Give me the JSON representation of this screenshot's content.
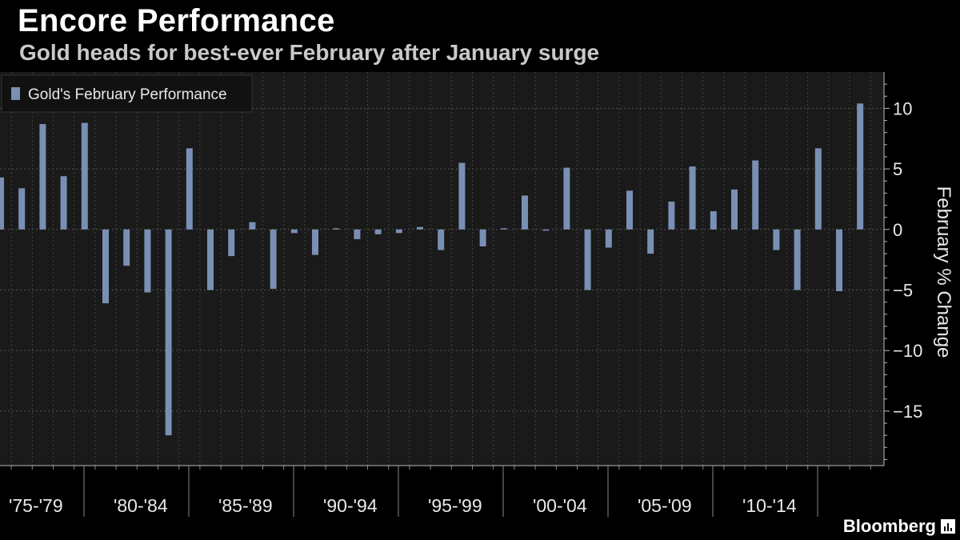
{
  "header": {
    "title": "Encore Performance",
    "subtitle": "Gold heads for best-ever February after January surge"
  },
  "footer": {
    "brand": "Bloomberg"
  },
  "colors": {
    "background": "#000000",
    "plot_background": "#1a1a1a",
    "bar": "#7a8fb4",
    "grid": "#555555",
    "text": "#ffffff"
  },
  "chart_data": {
    "type": "bar",
    "title": "Encore Performance",
    "subtitle": "Gold heads for best-ever February after January surge",
    "ylabel": "February % Change",
    "xlabel": "",
    "ylim": [
      -19.5,
      13
    ],
    "y_ticks": [
      10,
      5,
      0,
      -5,
      -10,
      -15
    ],
    "grid": true,
    "legend": {
      "placement": "top-left",
      "entries": [
        "Gold's February Performance"
      ]
    },
    "x_group_labels": [
      "'75-'79",
      "'80-'84",
      "'85-'89",
      "'90-'94",
      "'95-'99",
      "'00-'04",
      "'05-'09",
      "'10-'14"
    ],
    "series": [
      {
        "name": "Gold's February Performance",
        "x": [
          1975,
          1976,
          1977,
          1978,
          1979,
          1980,
          1981,
          1982,
          1983,
          1984,
          1985,
          1986,
          1987,
          1988,
          1989,
          1990,
          1991,
          1992,
          1993,
          1994,
          1995,
          1996,
          1997,
          1998,
          1999,
          2000,
          2001,
          2002,
          2003,
          2004,
          2005,
          2006,
          2007,
          2008,
          2009,
          2010,
          2011,
          2012,
          2013,
          2014,
          2015,
          2016
        ],
        "values": [
          4.3,
          3.4,
          8.7,
          4.4,
          8.8,
          -6.1,
          -3.0,
          -5.2,
          -17.0,
          6.7,
          -5.0,
          -2.2,
          0.6,
          -4.9,
          -0.3,
          -2.1,
          0.1,
          -0.8,
          -0.4,
          -0.3,
          0.2,
          -1.7,
          5.5,
          -1.4,
          0.1,
          2.8,
          -0.1,
          5.1,
          -5.0,
          -1.5,
          3.2,
          -2.0,
          2.3,
          5.2,
          1.5,
          3.3,
          5.7,
          -1.7,
          -5.0,
          6.7,
          -5.1,
          10.4
        ]
      }
    ]
  }
}
